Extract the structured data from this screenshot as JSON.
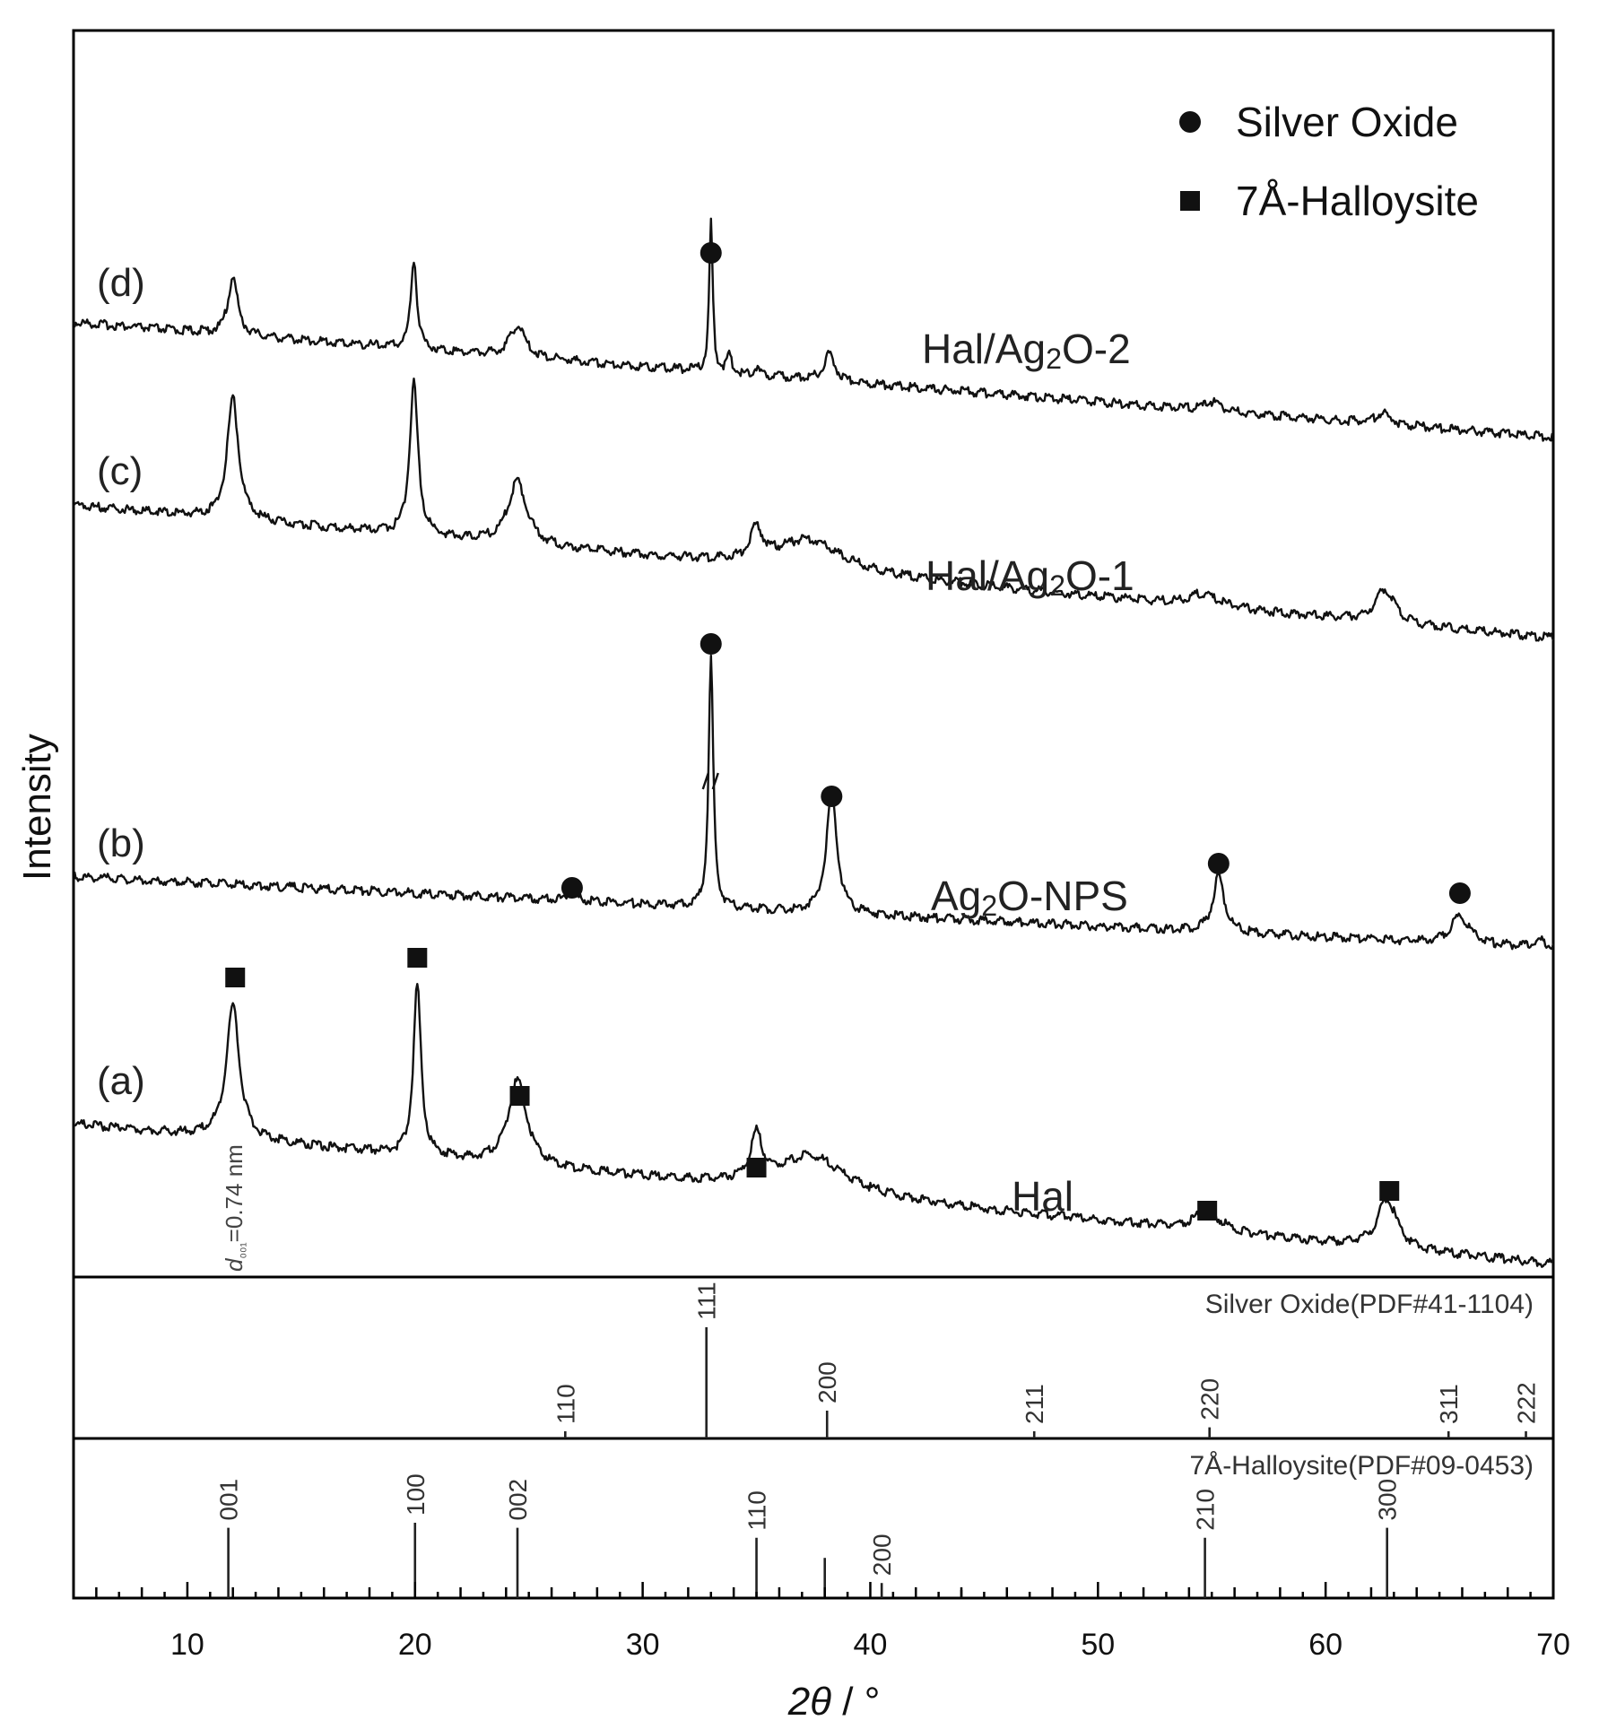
{
  "chart_data": {
    "type": "line",
    "xlabel_symbol": "2θ",
    "xlabel_unit": "/ °",
    "ylabel": "Intensity",
    "xlim": [
      5,
      70
    ],
    "x_ticks": [
      10,
      20,
      30,
      40,
      50,
      60,
      70
    ],
    "legend": [
      {
        "marker": "circle",
        "label": "Silver Oxide"
      },
      {
        "marker": "square",
        "label": "7Å-Halloysite"
      }
    ],
    "series": [
      {
        "tag": "(d)",
        "name": "Hal/Ag₂O-2",
        "marker_peaks": [
          {
            "x": 33.0,
            "marker": "circle"
          }
        ]
      },
      {
        "tag": "(c)",
        "name": "Hal/Ag₂O-1",
        "marker_peaks": []
      },
      {
        "tag": "(b)",
        "name": "Ag₂O-NPS",
        "marker_peaks": [
          {
            "x": 26.9,
            "marker": "circle"
          },
          {
            "x": 33.0,
            "marker": "circle"
          },
          {
            "x": 38.3,
            "marker": "circle"
          },
          {
            "x": 55.3,
            "marker": "circle"
          },
          {
            "x": 65.9,
            "marker": "circle"
          }
        ]
      },
      {
        "tag": "(a)",
        "name": "Hal",
        "marker_peaks": [
          {
            "x": 12.1,
            "marker": "square"
          },
          {
            "x": 20.1,
            "marker": "square"
          },
          {
            "x": 24.6,
            "marker": "square"
          },
          {
            "x": 35.0,
            "marker": "square"
          },
          {
            "x": 54.8,
            "marker": "square"
          },
          {
            "x": 62.8,
            "marker": "square"
          }
        ]
      }
    ],
    "annotation": "d₀₀₁=0.74 nm",
    "reference_patterns": [
      {
        "title": "Silver Oxide(PDF#41-1104)",
        "lines": [
          {
            "x": 26.6,
            "h": 0.04,
            "hkl": "110"
          },
          {
            "x": 32.8,
            "h": 1.0,
            "hkl": "111"
          },
          {
            "x": 38.1,
            "h": 0.25,
            "hkl": "200"
          },
          {
            "x": 47.2,
            "h": 0.02,
            "hkl": "211"
          },
          {
            "x": 54.9,
            "h": 0.1,
            "hkl": "220"
          },
          {
            "x": 65.4,
            "h": 0.02,
            "hkl": "311"
          },
          {
            "x": 68.8,
            "h": 0.02,
            "hkl": "222"
          }
        ]
      },
      {
        "title": "7Å-Halloysite(PDF#09-0453)",
        "lines": [
          {
            "x": 11.8,
            "h": 0.7,
            "hkl": "001"
          },
          {
            "x": 20.0,
            "h": 0.75,
            "hkl": "100"
          },
          {
            "x": 24.5,
            "h": 0.7,
            "hkl": "002"
          },
          {
            "x": 35.0,
            "h": 0.6,
            "hkl": "110"
          },
          {
            "x": 38.0,
            "h": 0.4,
            "hkl": ""
          },
          {
            "x": 40.5,
            "h": 0.15,
            "hkl": "200"
          },
          {
            "x": 44.0,
            "h": 0.08,
            "hkl": ""
          },
          {
            "x": 54.7,
            "h": 0.6,
            "hkl": "210"
          },
          {
            "x": 62.7,
            "h": 0.7,
            "hkl": "300"
          }
        ]
      }
    ]
  }
}
